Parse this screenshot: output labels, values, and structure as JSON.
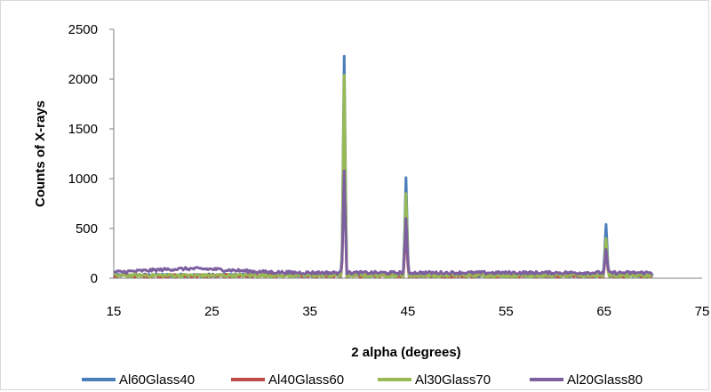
{
  "chart_data": {
    "type": "line",
    "title": "",
    "xlabel": "2 alpha (degrees)",
    "ylabel": "Counts of X-rays",
    "xlim": [
      15,
      75
    ],
    "ylim": [
      0,
      2500
    ],
    "x_ticks": [
      15,
      25,
      35,
      45,
      55,
      65,
      75
    ],
    "y_ticks": [
      0,
      500,
      1000,
      1500,
      2000,
      2500
    ],
    "x_range_of_data": [
      15,
      70
    ],
    "grid": false,
    "legend_position": "bottom",
    "series": [
      {
        "name": "Al60Glass40",
        "color": "#4a7ebb",
        "baseline": 30,
        "peaks": [
          {
            "x": 38.5,
            "y": 2230
          },
          {
            "x": 44.8,
            "y": 1010
          },
          {
            "x": 65.2,
            "y": 540
          }
        ]
      },
      {
        "name": "Al40Glass60",
        "color": "#be4b48",
        "baseline": 25,
        "peaks": [
          {
            "x": 38.5,
            "y": 1200
          },
          {
            "x": 44.8,
            "y": 520
          },
          {
            "x": 65.2,
            "y": 300
          }
        ]
      },
      {
        "name": "Al30Glass70",
        "color": "#98b954",
        "baseline": 28,
        "peaks": [
          {
            "x": 38.5,
            "y": 2040
          },
          {
            "x": 44.8,
            "y": 850
          },
          {
            "x": 65.2,
            "y": 400
          }
        ]
      },
      {
        "name": "Al20Glass80",
        "color": "#7d5fa0",
        "baseline": 55,
        "peaks": [
          {
            "x": 38.5,
            "y": 1080
          },
          {
            "x": 44.8,
            "y": 600
          },
          {
            "x": 65.2,
            "y": 290
          }
        ]
      }
    ]
  }
}
